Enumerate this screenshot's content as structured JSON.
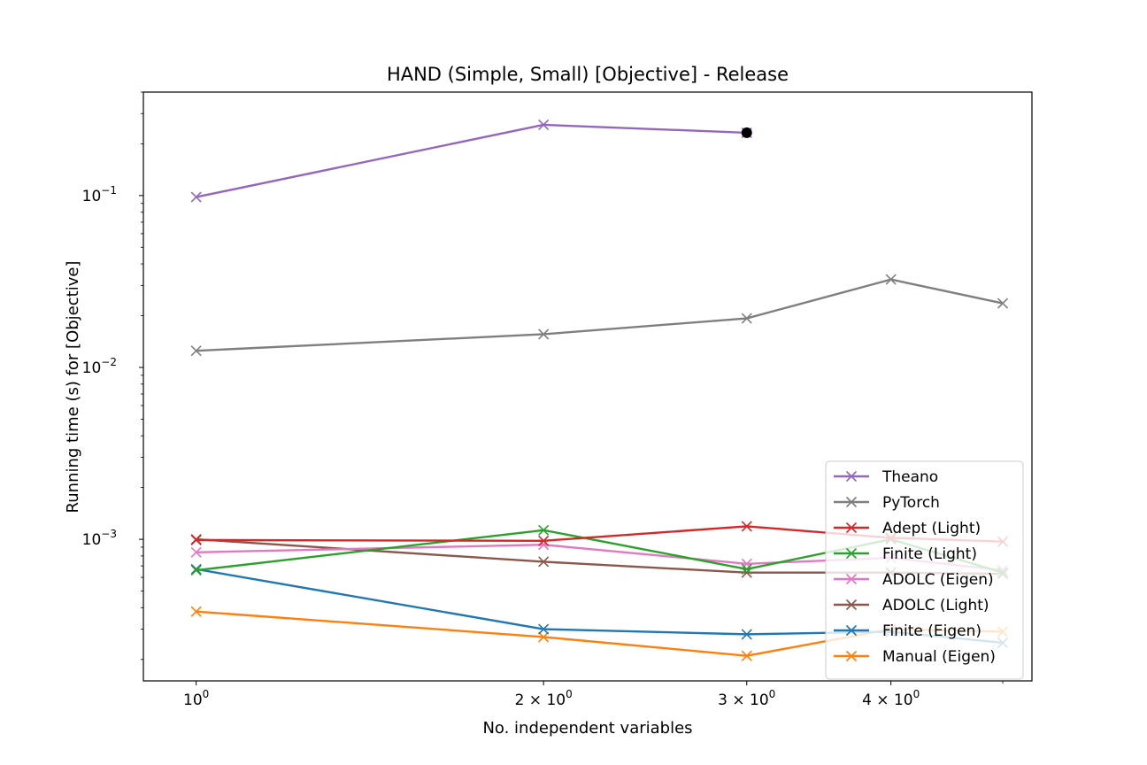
{
  "chart_data": {
    "type": "line",
    "title": "HAND (Simple, Small) [Objective] - Release",
    "xlabel": "No. independent variables",
    "ylabel": "Running time (s) for [Objective]",
    "xscale": "log",
    "yscale": "log",
    "xlim": [
      0.9,
      5.3
    ],
    "ylim": [
      0.00015,
      0.4
    ],
    "x_ticks": [
      {
        "value": 1,
        "label_base": "10",
        "label_sup": "0"
      },
      {
        "value": 2,
        "label_base": "2 × 10",
        "label_sup": "0"
      },
      {
        "value": 3,
        "label_base": "3 × 10",
        "label_sup": "0"
      },
      {
        "value": 4,
        "label_base": "4 × 10",
        "label_sup": "0"
      }
    ],
    "y_ticks": [
      {
        "value": 0.001,
        "label_base": "10",
        "label_sup": "−3"
      },
      {
        "value": 0.01,
        "label_base": "10",
        "label_sup": "−2"
      },
      {
        "value": 0.1,
        "label_base": "10",
        "label_sup": "−1"
      }
    ],
    "legend_position": "lower-right",
    "grid": false,
    "series": [
      {
        "name": "Theano",
        "color": "#9467bd",
        "x": [
          1,
          2,
          3
        ],
        "y": [
          0.098,
          0.258,
          0.232
        ],
        "timeout_at": [
          3,
          0.232
        ]
      },
      {
        "name": "PyTorch",
        "color": "#7f7f7f",
        "x": [
          1,
          2,
          3,
          4,
          5
        ],
        "y": [
          0.0125,
          0.0156,
          0.0193,
          0.0325,
          0.0236
        ]
      },
      {
        "name": "Adept (Light)",
        "color": "#d62728",
        "x": [
          1,
          2,
          3,
          4,
          5
        ],
        "y": [
          0.00099,
          0.00098,
          0.00119,
          0.00102,
          0.00097
        ]
      },
      {
        "name": "Finite (Light)",
        "color": "#2ca02c",
        "x": [
          1,
          2,
          3,
          4,
          5
        ],
        "y": [
          0.00066,
          0.00113,
          0.00067,
          0.001,
          0.00064
        ]
      },
      {
        "name": "ADOLC (Eigen)",
        "color": "#e377c2",
        "x": [
          1,
          2,
          3,
          4,
          5
        ],
        "y": [
          0.00084,
          0.00093,
          0.00072,
          0.00078,
          0.00066
        ]
      },
      {
        "name": "ADOLC (Light)",
        "color": "#8c564b",
        "x": [
          1,
          2,
          3,
          4,
          5
        ],
        "y": [
          0.001,
          0.00074,
          0.00064,
          0.00064,
          0.00063
        ]
      },
      {
        "name": "Finite (Eigen)",
        "color": "#1f77b4",
        "x": [
          1,
          2,
          3,
          4,
          5
        ],
        "y": [
          0.00067,
          0.0003,
          0.00028,
          0.00029,
          0.00025
        ]
      },
      {
        "name": "Manual (Eigen)",
        "color": "#ff7f0e",
        "x": [
          1,
          2,
          3,
          4,
          5
        ],
        "y": [
          0.00038,
          0.00027,
          0.00021,
          0.0003,
          0.00029
        ]
      }
    ]
  }
}
